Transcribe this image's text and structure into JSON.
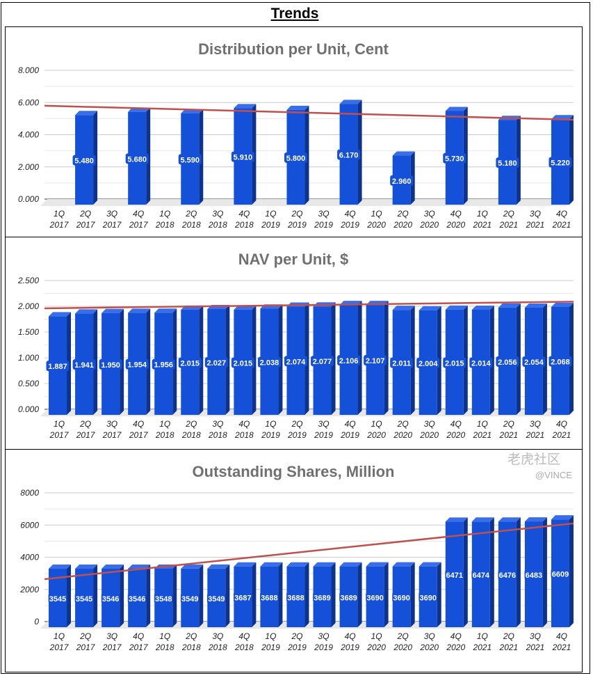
{
  "page_title": "Trends",
  "watermark": "老虎社区",
  "watermark_user": "@VINCE",
  "colors": {
    "bar": "#1550d8",
    "bar_side": "#0d338f",
    "bar_top": "#3a6ee8",
    "trend": "#c0504d",
    "title": "#707070"
  },
  "chart_data": [
    {
      "type": "bar",
      "title": "Distribution per Unit, Cent",
      "ylim": [
        0,
        8
      ],
      "yticks": [
        "0.000",
        "2.000",
        "4.000",
        "6.000",
        "8.000"
      ],
      "grid": true,
      "legend": "none",
      "categories": [
        "1Q 2017",
        "2Q 2017",
        "3Q 2017",
        "4Q 2017",
        "1Q 2018",
        "2Q 2018",
        "3Q 2018",
        "4Q 2018",
        "1Q 2019",
        "2Q 2019",
        "3Q 2019",
        "4Q 2019",
        "1Q 2020",
        "2Q 2020",
        "3Q 2020",
        "4Q 2020",
        "1Q 2021",
        "2Q 2021",
        "3Q 2021",
        "4Q 2021"
      ],
      "values": [
        null,
        5.48,
        null,
        5.68,
        null,
        5.59,
        null,
        5.91,
        null,
        5.8,
        null,
        6.17,
        null,
        2.96,
        null,
        5.73,
        null,
        5.18,
        null,
        5.22
      ],
      "labels": [
        "",
        "5.480",
        "",
        "5.680",
        "",
        "5.590",
        "",
        "5.910",
        "",
        "5.800",
        "",
        "6.170",
        "",
        "2.960",
        "",
        "5.730",
        "",
        "5.180",
        "",
        "5.220"
      ],
      "trendline": [
        5.8,
        4.93
      ]
    },
    {
      "type": "bar",
      "title": "NAV per Unit, $",
      "ylim": [
        0,
        2.5
      ],
      "yticks": [
        "0.000",
        "0.500",
        "1.000",
        "1.500",
        "2.000",
        "2.500"
      ],
      "grid": true,
      "legend": "none",
      "categories": [
        "1Q 2017",
        "2Q 2017",
        "3Q 2017",
        "4Q 2017",
        "1Q 2018",
        "2Q 2018",
        "3Q 2018",
        "4Q 2018",
        "1Q 2019",
        "2Q 2019",
        "3Q 2019",
        "4Q 2019",
        "1Q 2020",
        "2Q 2020",
        "3Q 2020",
        "4Q 2020",
        "1Q 2021",
        "2Q 2021",
        "3Q 2021",
        "4Q 2021"
      ],
      "values": [
        1.887,
        1.941,
        1.95,
        1.954,
        1.956,
        2.015,
        2.027,
        2.015,
        2.038,
        2.074,
        2.077,
        2.106,
        2.107,
        2.011,
        2.004,
        2.015,
        2.014,
        2.056,
        2.054,
        2.068
      ],
      "labels": [
        "1.887",
        "1.941",
        "1.950",
        "1.954",
        "1.956",
        "2.015",
        "2.027",
        "2.015",
        "2.038",
        "2.074",
        "2.077",
        "2.106",
        "2.107",
        "2.011",
        "2.004",
        "2.015",
        "2.014",
        "2.056",
        "2.054",
        "2.068"
      ],
      "trendline": [
        1.96,
        2.09
      ]
    },
    {
      "type": "bar",
      "title": "Outstanding Shares, Million",
      "ylim": [
        0,
        8000
      ],
      "yticks": [
        "0",
        "2000",
        "4000",
        "6000",
        "8000"
      ],
      "grid": true,
      "legend": "none",
      "categories": [
        "1Q 2017",
        "2Q 2017",
        "3Q 2017",
        "4Q 2017",
        "1Q 2018",
        "2Q 2018",
        "3Q 2018",
        "4Q 2018",
        "1Q 2019",
        "2Q 2019",
        "3Q 2019",
        "4Q 2019",
        "1Q 2020",
        "2Q 2020",
        "3Q 2020",
        "4Q 2020",
        "1Q 2021",
        "2Q 2021",
        "3Q 2021",
        "4Q 2021"
      ],
      "values": [
        3545,
        3545,
        3546,
        3546,
        3548,
        3549,
        3549,
        3687,
        3688,
        3688,
        3689,
        3689,
        3690,
        3690,
        3690,
        6471,
        6474,
        6476,
        6483,
        6609
      ],
      "labels": [
        "3545",
        "3545",
        "3546",
        "3546",
        "3548",
        "3549",
        "3549",
        "3687",
        "3688",
        "3688",
        "3689",
        "3689",
        "3690",
        "3690",
        "3690",
        "6471",
        "6474",
        "6476",
        "6483",
        "6609"
      ],
      "trendline": [
        2640,
        6100
      ]
    }
  ]
}
